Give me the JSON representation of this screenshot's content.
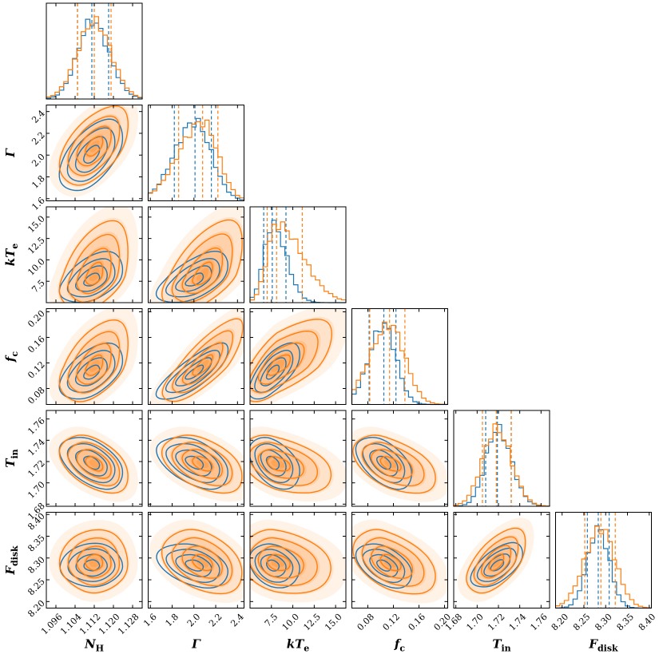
{
  "chart_data": {
    "type": "corner",
    "parameters": [
      {
        "label": "N",
        "sub": "H",
        "range": [
          1.092,
          1.132
        ],
        "ticks": [
          1.096,
          1.104,
          1.112,
          1.12,
          1.128
        ],
        "tick_labels": [
          "1.096",
          "1.104",
          "1.112",
          "1.120",
          "1.128"
        ],
        "mean": 1.112,
        "sd": 0.0055
      },
      {
        "label": "Γ",
        "sub": "",
        "range": [
          1.58,
          2.46
        ],
        "ticks": [
          1.6,
          1.8,
          2.0,
          2.2,
          2.4
        ],
        "tick_labels": [
          "1.6",
          "1.8",
          "2.0",
          "2.2",
          "2.4"
        ],
        "mean": 2.03,
        "sd": 0.16
      },
      {
        "label": "kT",
        "sub": "e",
        "range": [
          5.0,
          16.2
        ],
        "ticks": [
          7.5,
          10.0,
          12.5,
          15.0
        ],
        "tick_labels": [
          "7.5",
          "10.0",
          "12.5",
          "15.0"
        ],
        "mean": 7.6,
        "sd": 1.2
      },
      {
        "label": "f",
        "sub": "c",
        "range": [
          0.055,
          0.205
        ],
        "ticks": [
          0.08,
          0.12,
          0.16,
          0.2
        ],
        "tick_labels": [
          "0.08",
          "0.12",
          "0.16",
          "0.20"
        ],
        "mean": 0.108,
        "sd": 0.022
      },
      {
        "label": "T",
        "sub": "in",
        "range": [
          1.678,
          1.768
        ],
        "ticks": [
          1.68,
          1.7,
          1.72,
          1.74,
          1.76
        ],
        "tick_labels": [
          "1.68",
          "1.70",
          "1.72",
          "1.74",
          "1.76"
        ],
        "mean": 1.719,
        "sd": 0.011
      },
      {
        "label": "F",
        "sub": "disk",
        "range": [
          8.185,
          8.405
        ],
        "ticks": [
          8.2,
          8.25,
          8.3,
          8.35,
          8.4
        ],
        "tick_labels": [
          "8.20",
          "8.25",
          "8.30",
          "8.35",
          "8.40"
        ],
        "mean": 8.288,
        "sd": 0.025
      }
    ],
    "series": [
      {
        "color": "#1f77b4",
        "quantiles": [
          [
            1.105,
            1.111,
            1.118
          ],
          [
            1.82,
            2.01,
            2.16
          ],
          [
            6.6,
            7.6,
            9.2
          ],
          [
            0.082,
            0.105,
            0.124
          ],
          [
            1.708,
            1.719,
            1.732
          ],
          [
            8.258,
            8.283,
            8.308
          ]
        ],
        "skew": [
          0,
          -0.1,
          0.25,
          0.05,
          0,
          0
        ]
      },
      {
        "color": "#ff7f0e",
        "quantiles": [
          [
            1.105,
            1.112,
            1.119
          ],
          [
            1.86,
            2.08,
            2.22
          ],
          [
            7.0,
            8.1,
            11.1
          ],
          [
            0.083,
            0.114,
            0.138
          ],
          [
            1.705,
            1.718,
            1.732
          ],
          [
            8.252,
            8.289,
            8.322
          ]
        ],
        "skew": [
          0,
          0,
          0.55,
          0.3,
          0,
          0.1
        ]
      }
    ],
    "contour_levels": [
      0.5,
      1.0,
      1.5,
      2.0
    ],
    "correlation": [
      [
        1,
        0.55,
        0.45,
        0.5,
        -0.45,
        0
      ],
      [
        0.55,
        1,
        0.6,
        0.85,
        -0.45,
        -0.35
      ],
      [
        0.45,
        0.6,
        1,
        0.7,
        -0.4,
        -0.2
      ],
      [
        0.5,
        0.85,
        0.7,
        1,
        -0.5,
        -0.45
      ],
      [
        -0.45,
        -0.45,
        -0.4,
        -0.5,
        1,
        0.6
      ],
      [
        0,
        -0.35,
        -0.2,
        -0.45,
        0.6,
        1
      ]
    ],
    "grid": false,
    "legend": "none"
  }
}
